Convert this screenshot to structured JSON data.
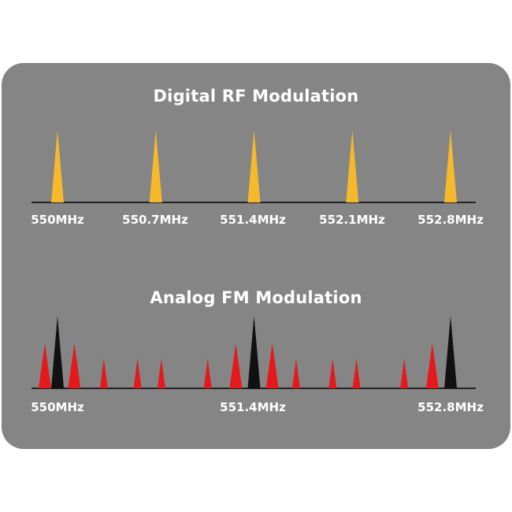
{
  "digital": {
    "title": "Digital RF Modulation",
    "labels": [
      "550MHz",
      "550.7MHz",
      "551.4MHz",
      "552.1MHz",
      "552.8MHz"
    ],
    "peaks": [
      {
        "freq": 550.0,
        "height": 1.0,
        "color": "#f6b92b"
      },
      {
        "freq": 550.7,
        "height": 1.0,
        "color": "#f6b92b"
      },
      {
        "freq": 551.4,
        "height": 1.0,
        "color": "#f6b92b"
      },
      {
        "freq": 552.1,
        "height": 1.0,
        "color": "#f6b92b"
      },
      {
        "freq": 552.8,
        "height": 1.0,
        "color": "#f6b92b"
      }
    ]
  },
  "analog": {
    "title": "Analog FM Modulation",
    "labels": [
      "550MHz",
      "551.4MHz",
      "552.8MHz"
    ],
    "peaks": [
      {
        "freq": 549.91,
        "height": 0.62,
        "color": "#e3191b"
      },
      {
        "freq": 550.0,
        "height": 1.0,
        "color": "#111111"
      },
      {
        "freq": 550.12,
        "height": 0.62,
        "color": "#e3191b"
      },
      {
        "freq": 550.33,
        "height": 0.41,
        "color": "#e3191b"
      },
      {
        "freq": 550.57,
        "height": 0.41,
        "color": "#e3191b"
      },
      {
        "freq": 550.74,
        "height": 0.41,
        "color": "#e3191b"
      },
      {
        "freq": 551.07,
        "height": 0.41,
        "color": "#e3191b"
      },
      {
        "freq": 551.27,
        "height": 0.62,
        "color": "#e3191b"
      },
      {
        "freq": 551.4,
        "height": 1.0,
        "color": "#111111"
      },
      {
        "freq": 551.53,
        "height": 0.62,
        "color": "#e3191b"
      },
      {
        "freq": 551.7,
        "height": 0.41,
        "color": "#e3191b"
      },
      {
        "freq": 551.96,
        "height": 0.41,
        "color": "#e3191b"
      },
      {
        "freq": 552.13,
        "height": 0.41,
        "color": "#e3191b"
      },
      {
        "freq": 552.47,
        "height": 0.41,
        "color": "#e3191b"
      },
      {
        "freq": 552.67,
        "height": 0.62,
        "color": "#e3191b"
      },
      {
        "freq": 552.8,
        "height": 1.0,
        "color": "#111111"
      }
    ]
  }
}
